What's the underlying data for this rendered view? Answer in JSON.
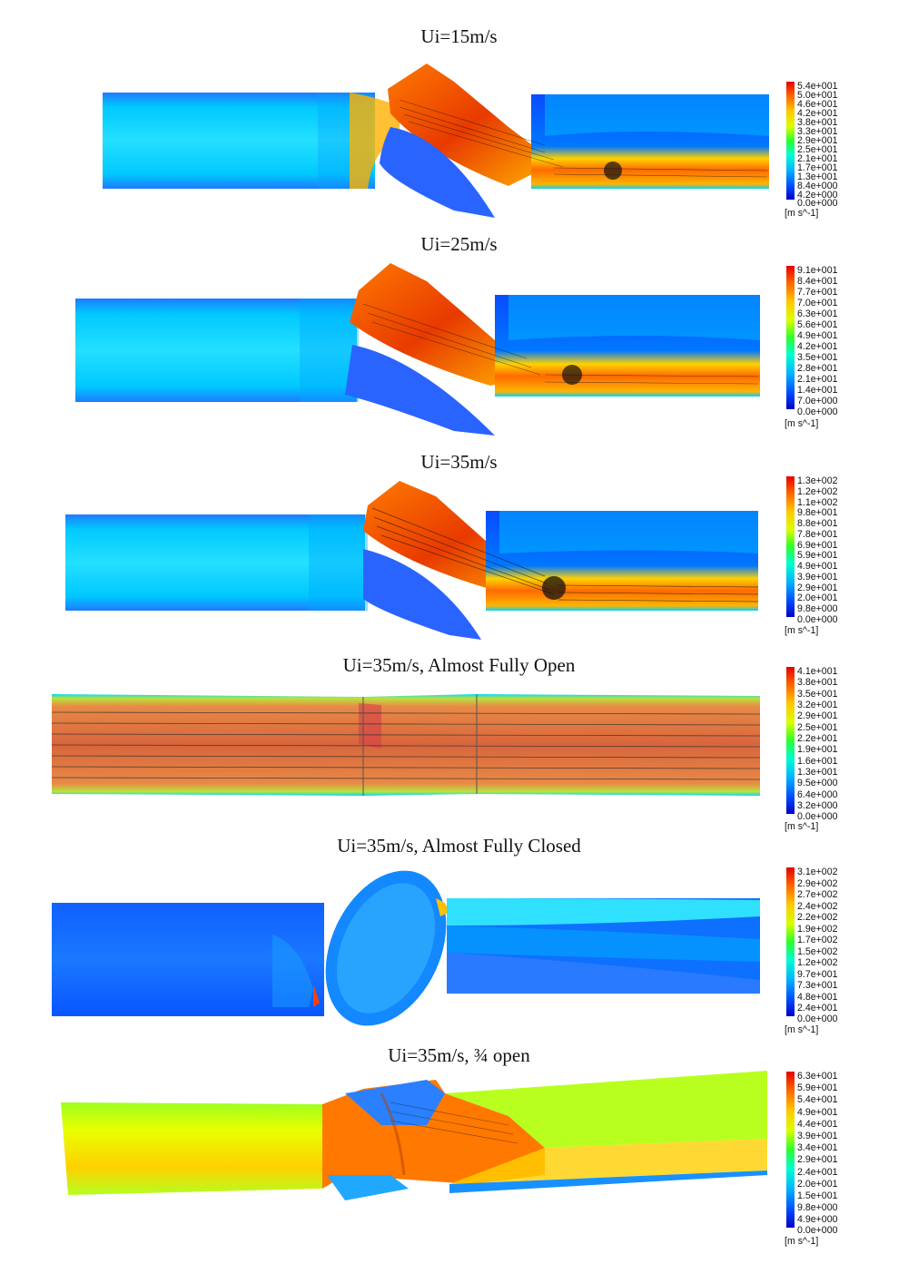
{
  "panels": [
    {
      "title": "Ui=15m/s",
      "unit": "[m s^-1]",
      "legend": [
        "5.4e+001",
        "5.0e+001",
        "4.6e+001",
        "4.2e+001",
        "3.8e+001",
        "3.3e+001",
        "2.9e+001",
        "2.5e+001",
        "2.1e+001",
        "1.7e+001",
        "1.3e+001",
        "8.4e+000",
        "4.2e+000",
        "0.0e+000"
      ]
    },
    {
      "title": "Ui=25m/s",
      "unit": "[m s^-1]",
      "legend": [
        "9.1e+001",
        "8.4e+001",
        "7.7e+001",
        "7.0e+001",
        "6.3e+001",
        "5.6e+001",
        "4.9e+001",
        "4.2e+001",
        "3.5e+001",
        "2.8e+001",
        "2.1e+001",
        "1.4e+001",
        "7.0e+000",
        "0.0e+000"
      ]
    },
    {
      "title": "Ui=35m/s",
      "unit": "[m s^-1]",
      "legend": [
        "1.3e+002",
        "1.2e+002",
        "1.1e+002",
        "9.8e+001",
        "8.8e+001",
        "7.8e+001",
        "6.9e+001",
        "5.9e+001",
        "4.9e+001",
        "3.9e+001",
        "2.9e+001",
        "2.0e+001",
        "9.8e+000",
        "0.0e+000"
      ]
    },
    {
      "title": "Ui=35m/s, Almost Fully Open",
      "unit": "[m s^-1]",
      "legend": [
        "4.1e+001",
        "3.8e+001",
        "3.5e+001",
        "3.2e+001",
        "2.9e+001",
        "2.5e+001",
        "2.2e+001",
        "1.9e+001",
        "1.6e+001",
        "1.3e+001",
        "9.5e+000",
        "6.4e+000",
        "3.2e+000",
        "0.0e+000"
      ]
    },
    {
      "title": "Ui=35m/s, Almost Fully Closed",
      "unit": "[m s^-1]",
      "legend": [
        "3.1e+002",
        "2.9e+002",
        "2.7e+002",
        "2.4e+002",
        "2.2e+002",
        "1.9e+002",
        "1.7e+002",
        "1.5e+002",
        "1.2e+002",
        "9.7e+001",
        "7.3e+001",
        "4.8e+001",
        "2.4e+001",
        "0.0e+000"
      ]
    },
    {
      "title": "Ui=35m/s, ¾ open",
      "unit": "[m s^-1]",
      "legend": [
        "6.3e+001",
        "5.9e+001",
        "5.4e+001",
        "4.9e+001",
        "4.4e+001",
        "3.9e+001",
        "3.4e+001",
        "2.9e+001",
        "2.4e+001",
        "2.0e+001",
        "1.5e+001",
        "9.8e+000",
        "4.9e+000",
        "0.0e+000"
      ]
    }
  ],
  "colors": {
    "jet": [
      "#0000c8",
      "#0050ff",
      "#00b4ff",
      "#00ffd0",
      "#2cff2c",
      "#d8ff00",
      "#ffc800",
      "#ff6400",
      "#e60000"
    ]
  }
}
